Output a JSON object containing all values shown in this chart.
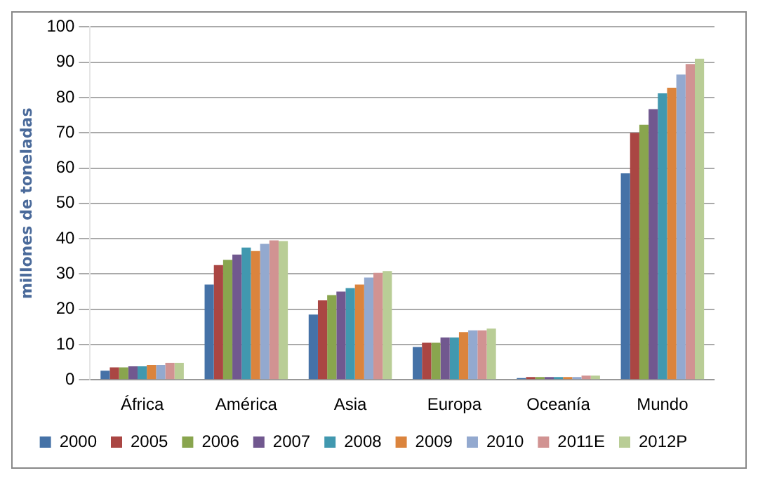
{
  "chart_data": {
    "type": "bar",
    "ylabel": "millones de toneladas",
    "categories": [
      "África",
      "América",
      "Asia",
      "Europa",
      "Oceanía",
      "Mundo"
    ],
    "ylim": [
      0,
      100
    ],
    "yticks": [
      0,
      10,
      20,
      30,
      40,
      50,
      60,
      70,
      80,
      90,
      100
    ],
    "grid": "y",
    "legend": "bottom",
    "series": [
      {
        "name": "2000",
        "color": "#4572a7",
        "values": [
          2.6,
          27,
          18.5,
          9.3,
          0.5,
          58.5
        ]
      },
      {
        "name": "2005",
        "color": "#aa4643",
        "values": [
          3.5,
          32.5,
          22.5,
          10.5,
          0.8,
          70
        ]
      },
      {
        "name": "2006",
        "color": "#89a54e",
        "values": [
          3.5,
          34,
          24,
          10.5,
          0.8,
          72.3
        ]
      },
      {
        "name": "2007",
        "color": "#71588f",
        "values": [
          3.8,
          35.5,
          25,
          12,
          0.8,
          76.7
        ]
      },
      {
        "name": "2008",
        "color": "#4198af",
        "values": [
          3.8,
          37.5,
          26,
          12,
          0.8,
          81.2
        ]
      },
      {
        "name": "2009",
        "color": "#db843d",
        "values": [
          4.2,
          36.5,
          27,
          13.5,
          0.8,
          82.8
        ]
      },
      {
        "name": "2010",
        "color": "#93a9cf",
        "values": [
          4.2,
          38.5,
          29,
          14,
          0.8,
          86.5
        ]
      },
      {
        "name": "2011E",
        "color": "#d19392",
        "values": [
          4.8,
          39.5,
          30.3,
          14,
          1.2,
          89.5
        ]
      },
      {
        "name": "2012P",
        "color": "#b9cd96",
        "values": [
          4.8,
          39.3,
          30.8,
          14.5,
          1.2,
          91
        ]
      }
    ]
  }
}
